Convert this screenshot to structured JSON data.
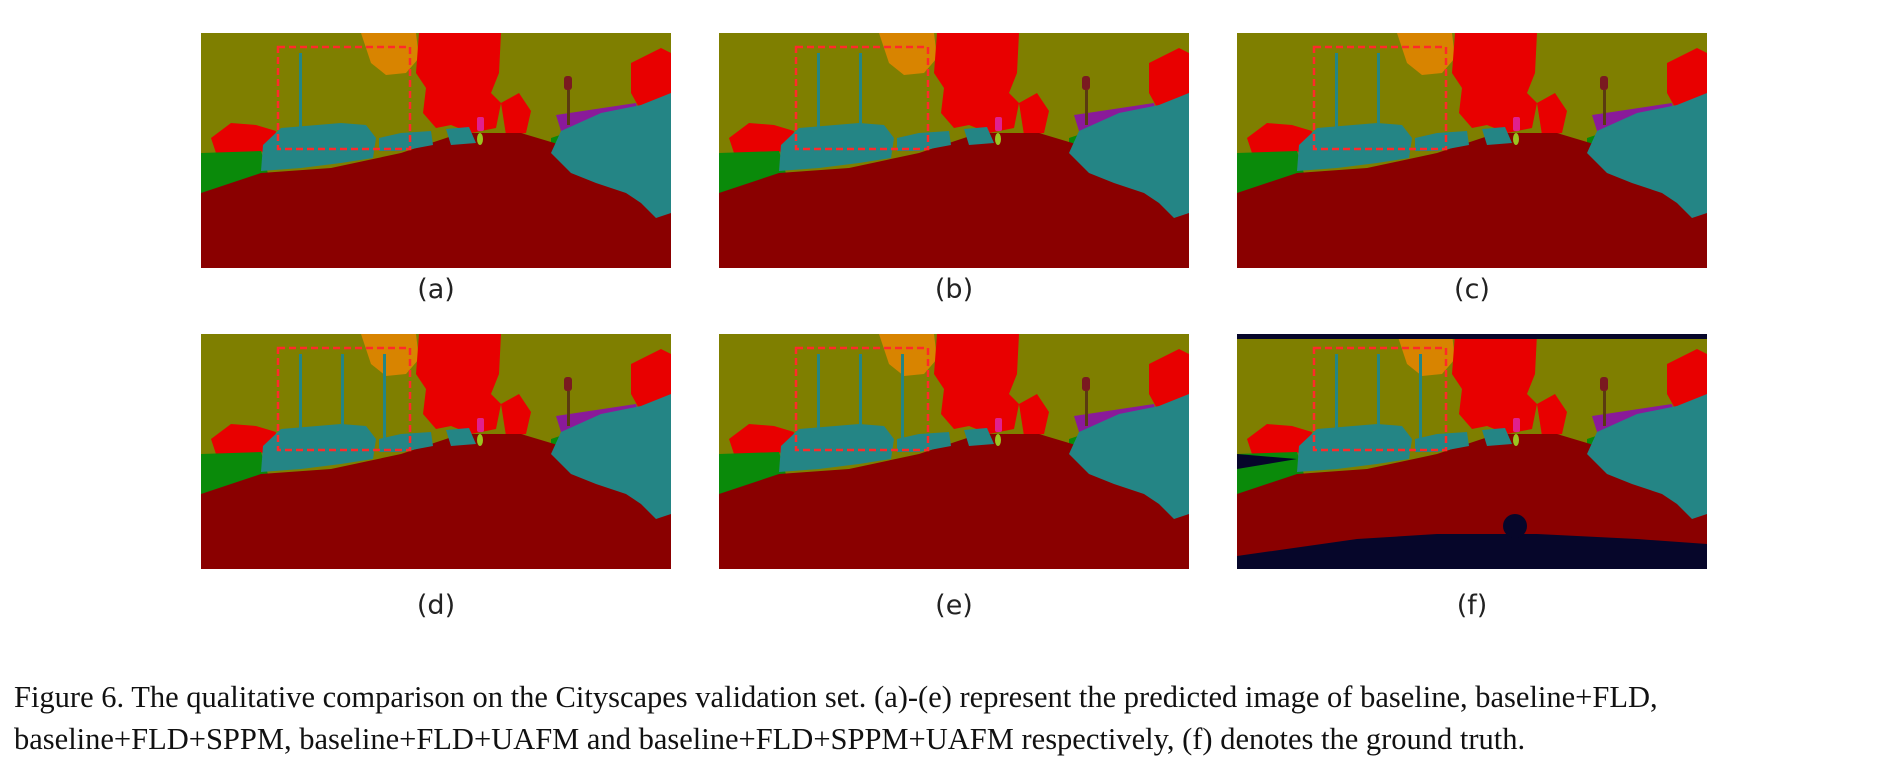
{
  "figure": {
    "panels": [
      {
        "label": "(a)",
        "variant": "a"
      },
      {
        "label": "(b)",
        "variant": "b"
      },
      {
        "label": "(c)",
        "variant": "c"
      },
      {
        "label": "(d)",
        "variant": "d"
      },
      {
        "label": "(e)",
        "variant": "e"
      },
      {
        "label": "(f)",
        "variant": "f"
      }
    ],
    "colors": {
      "road": "#8a0000",
      "vegetation_bg": "#7f7f00",
      "tree": "#e80000",
      "vehicle": "#248585",
      "grass": "#0a8a0a",
      "sky_orange": "#d88400",
      "sign_purple": "#8a1a9a",
      "pedestrian_pink": "#e0208f",
      "pole_yellow": "#9ac420",
      "void": "#06062a",
      "highlight_box": "#ff2a2a"
    },
    "caption_line1": "Figure 6.  The qualitative comparison on the Cityscapes validation set.  (a)-(e) represent the predicted image of baseline, baseline+FLD,",
    "caption_line2": "baseline+FLD+SPPM, baseline+FLD+UAFM and baseline+FLD+SPPM+UAFM respectively, (f) denotes the ground truth."
  }
}
